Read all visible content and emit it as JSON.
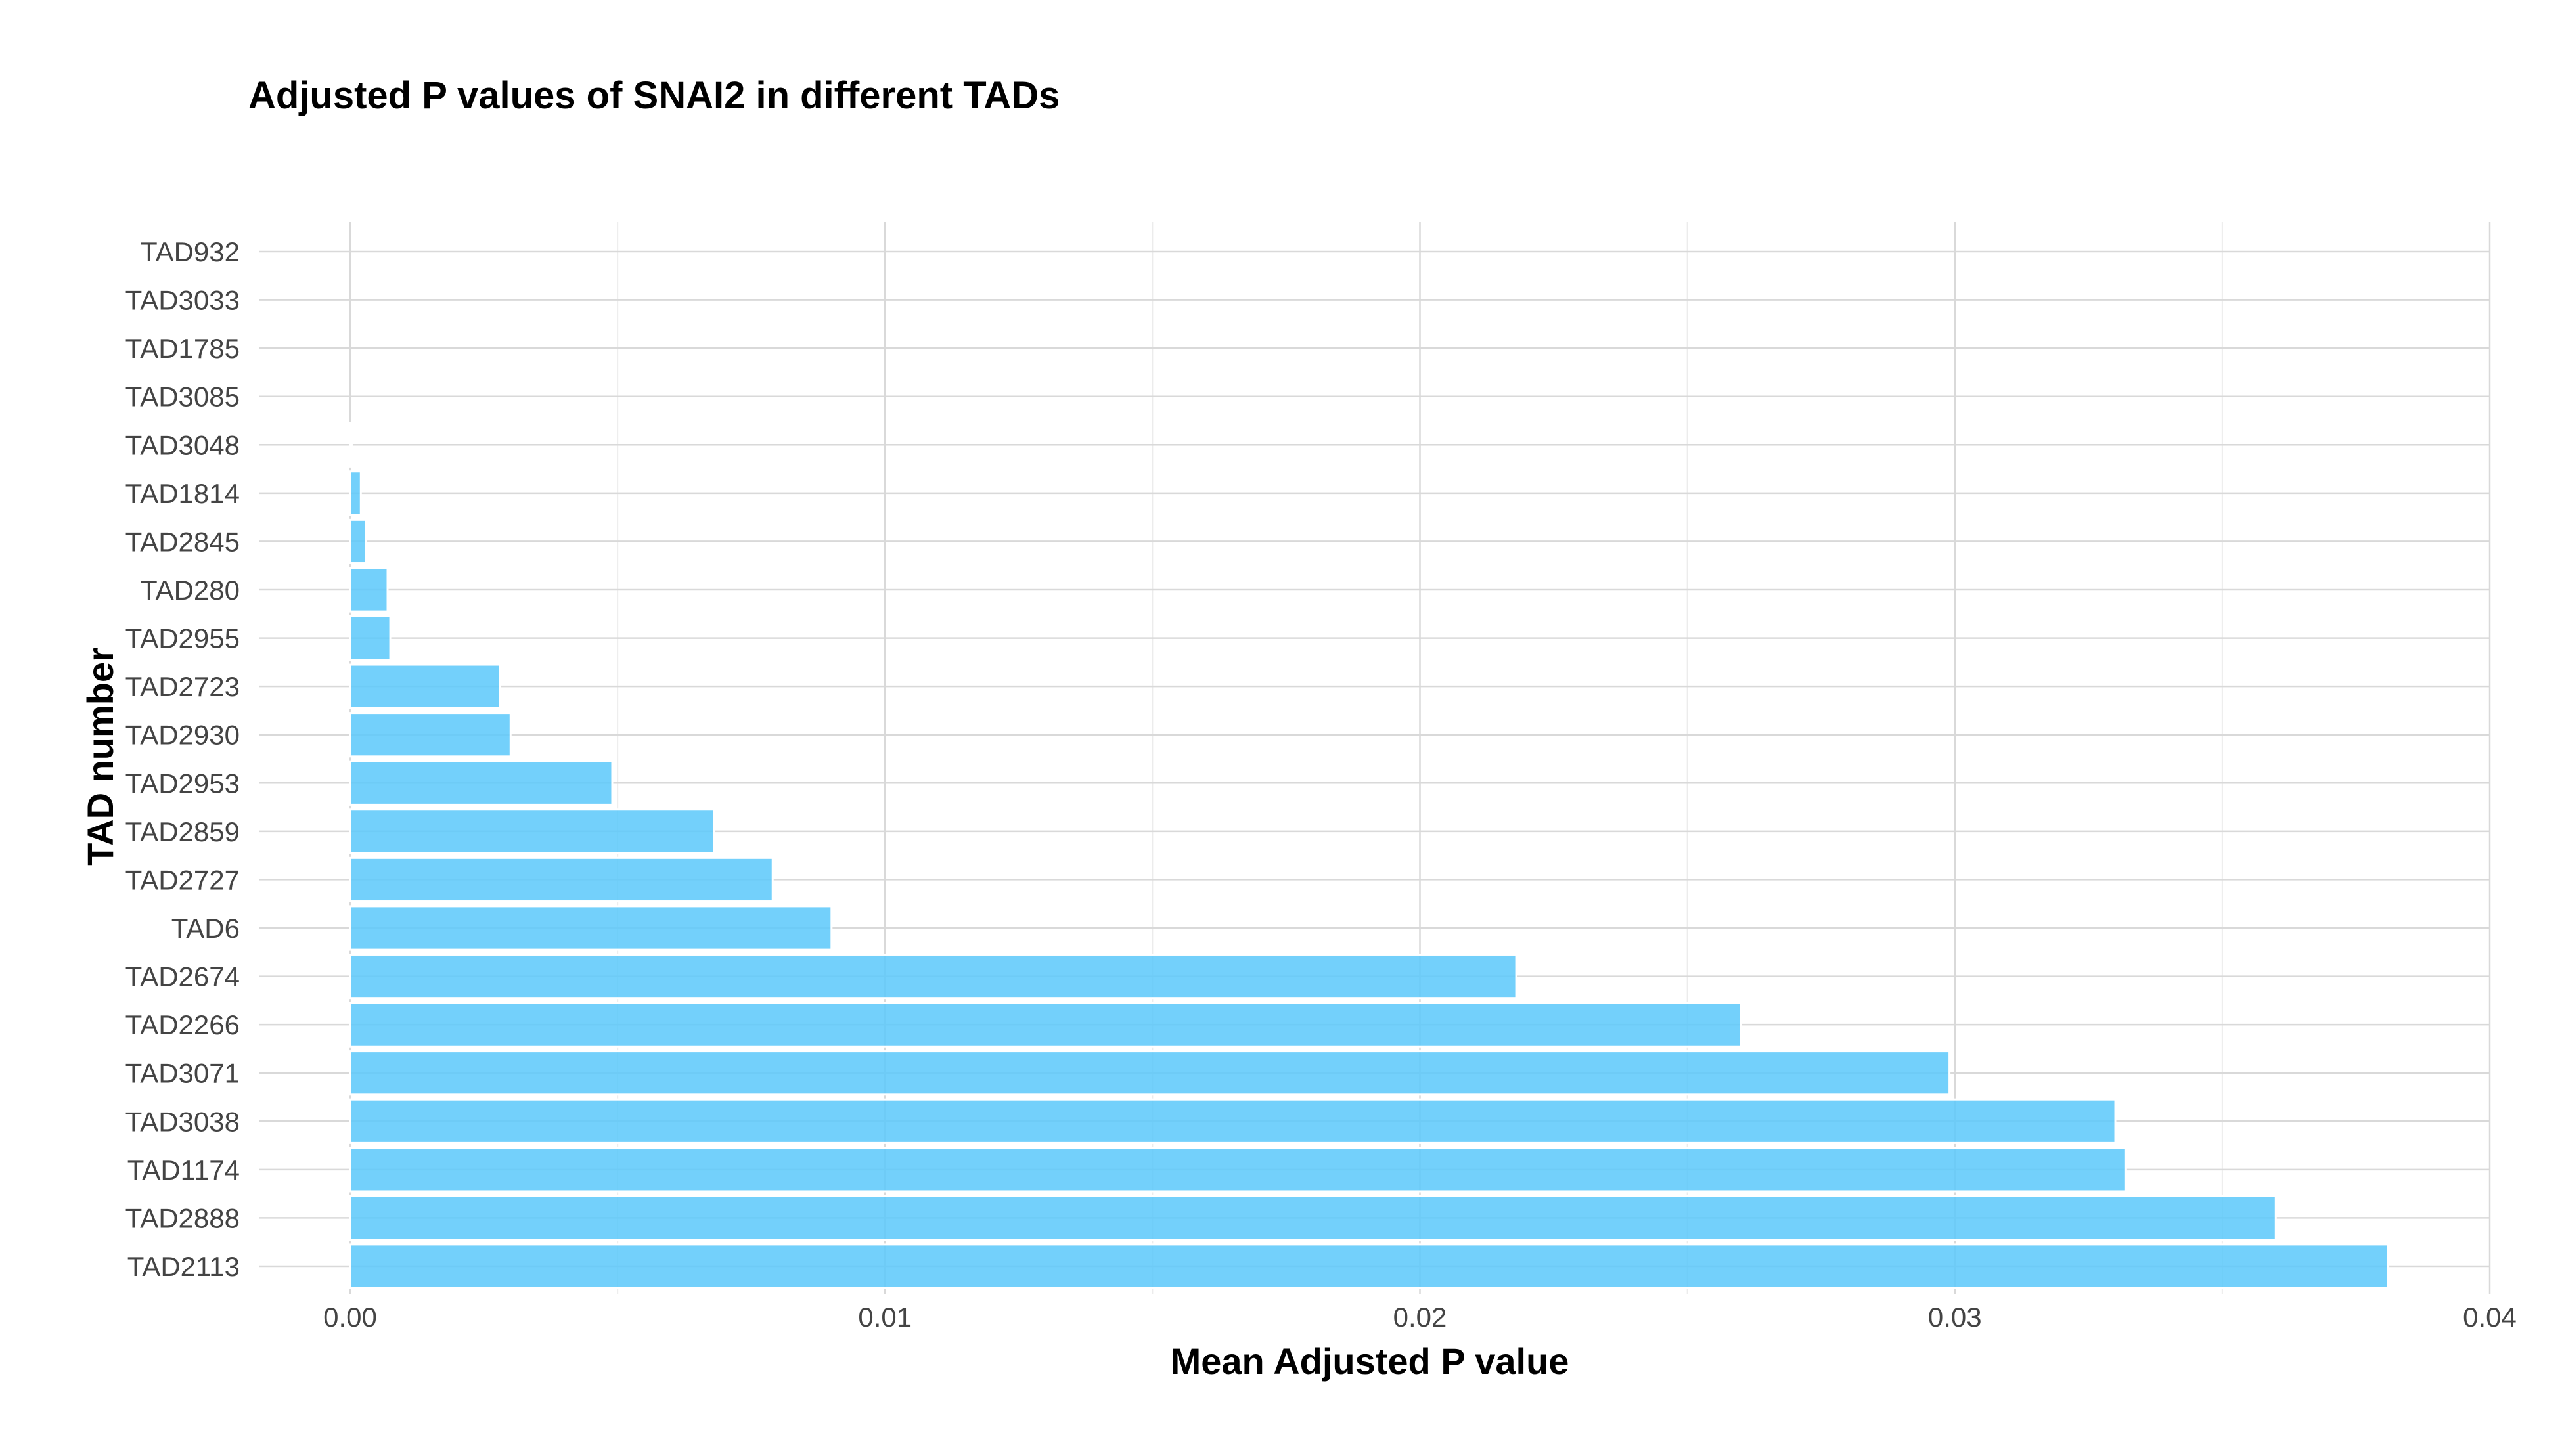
{
  "chart_data": {
    "type": "bar",
    "orientation": "horizontal",
    "title": "Adjusted P values of SNAI2 in different TADs",
    "xlabel": "Mean Adjusted P value",
    "ylabel": "TAD number",
    "categories": [
      "TAD932",
      "TAD3033",
      "TAD1785",
      "TAD3085",
      "TAD3048",
      "TAD1814",
      "TAD2845",
      "TAD280",
      "TAD2955",
      "TAD2723",
      "TAD2930",
      "TAD2953",
      "TAD2859",
      "TAD2727",
      "TAD6",
      "TAD2674",
      "TAD2266",
      "TAD3071",
      "TAD3038",
      "TAD1174",
      "TAD2888",
      "TAD2113"
    ],
    "values": [
      0.0,
      0.0,
      0.0,
      0.0,
      3e-05,
      0.0002,
      0.0003,
      0.0007,
      0.00075,
      0.0028,
      0.003,
      0.0049,
      0.0068,
      0.0079,
      0.009,
      0.0218,
      0.026,
      0.0299,
      0.033,
      0.0332,
      0.036,
      0.0381
    ],
    "xlim": [
      0,
      0.04
    ],
    "xticks": [
      "0.00",
      "0.01",
      "0.02",
      "0.03",
      "0.04"
    ],
    "xtick_values": [
      0,
      0.01,
      0.02,
      0.03,
      0.04
    ],
    "grid": true,
    "bar_color": "#5ac8fa"
  }
}
